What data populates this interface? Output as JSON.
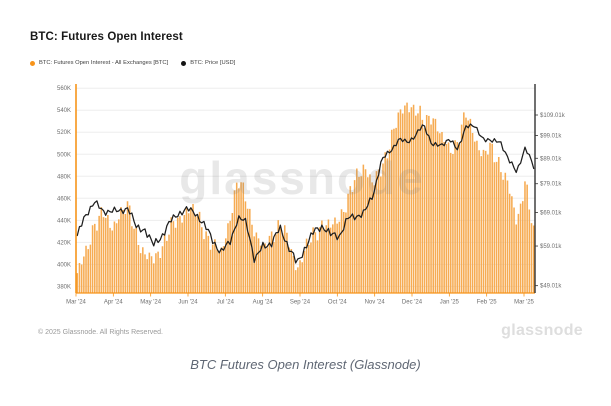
{
  "page": {
    "caption": "BTC Futures Open Interest (Glassnode)"
  },
  "chart": {
    "title": "BTC: Futures Open Interest",
    "legend": [
      {
        "label": "BTC: Futures Open Interest - All Exchanges [BTC]",
        "color": "#f7941a"
      },
      {
        "label": "BTC: Price [USD]",
        "color": "#141414"
      }
    ],
    "watermark": "glassnode",
    "footer_left": "© 2025 Glassnode. All Rights Reserved.",
    "brand_logo": "glassnode",
    "colors": {
      "bars": "#f6a649",
      "price_line": "#1e1e1e",
      "left_axis": "#f7941a",
      "right_axis": "#333333",
      "grid": "#ededed"
    }
  },
  "chart_data": {
    "type": "combo",
    "title": "BTC: Futures Open Interest",
    "x": {
      "start": "Mar 2024",
      "end": "Mar 2025",
      "interval": "weekly",
      "tick_labels": [
        "Mar '24",
        "Apr '24",
        "May '24",
        "Jun '24",
        "Jul '24",
        "Aug '24",
        "Sep '24",
        "Oct '24",
        "Nov '24",
        "Dec '24",
        "Jan '25",
        "Feb '25",
        "Mar '25"
      ]
    },
    "y_left": {
      "title": "Futures Open Interest - All Exchanges [BTC]",
      "scale": "linear",
      "unit": "BTC",
      "tick_labels": [
        "560K",
        "540K",
        "520K",
        "500K",
        "480K",
        "460K",
        "440K",
        "420K",
        "400K",
        "380K"
      ],
      "tick_values": [
        560,
        540,
        520,
        500,
        480,
        460,
        440,
        420,
        400,
        380
      ],
      "range_thousand_btc": [
        374,
        562
      ]
    },
    "y_right": {
      "title": "BTC: Price [USD]",
      "scale": "log",
      "unit": "USD",
      "tick_labels": [
        "$109.01k",
        "$99.01k",
        "$89.01k",
        "$79.01k",
        "$69.01k",
        "$59.01k",
        "$49.01k"
      ],
      "tick_values": [
        109.01,
        99.01,
        89.01,
        79.01,
        69.01,
        59.01,
        49.01
      ]
    },
    "grid": "horizontal",
    "legend_position": "top-left",
    "series": [
      {
        "name": "BTC: Futures Open Interest - All Exchanges [BTC]",
        "type": "bar",
        "axis": "left",
        "color": "#f6a649",
        "unit": "thousand BTC (weekly samples)",
        "values": [
          392,
          408,
          438,
          446,
          432,
          448,
          450,
          428,
          408,
          402,
          418,
          432,
          440,
          452,
          446,
          432,
          418,
          408,
          442,
          475,
          460,
          430,
          412,
          428,
          436,
          420,
          398,
          412,
          428,
          438,
          432,
          444,
          458,
          478,
          492,
          470,
          488,
          512,
          532,
          548,
          540,
          528,
          538,
          515,
          505,
          512,
          535,
          518,
          498,
          505,
          492,
          470,
          438,
          478,
          425
        ]
      },
      {
        "name": "BTC: Price [USD]",
        "type": "line",
        "axis": "right",
        "color": "#1e1e1e",
        "unit": "thousand USD (weekly samples)",
        "values": [
          62,
          68,
          73,
          69,
          70,
          69,
          71,
          64,
          64,
          59,
          62,
          66,
          69,
          70,
          69,
          65,
          61,
          57,
          60,
          67,
          66,
          55,
          59,
          60,
          64,
          59,
          54,
          59,
          63,
          65,
          62,
          62,
          67,
          68,
          69,
          75,
          88,
          92,
          97,
          96,
          99,
          104,
          95,
          94,
          98,
          92,
          104,
          103,
          98,
          96,
          97,
          88,
          84,
          93,
          86
        ]
      }
    ]
  }
}
